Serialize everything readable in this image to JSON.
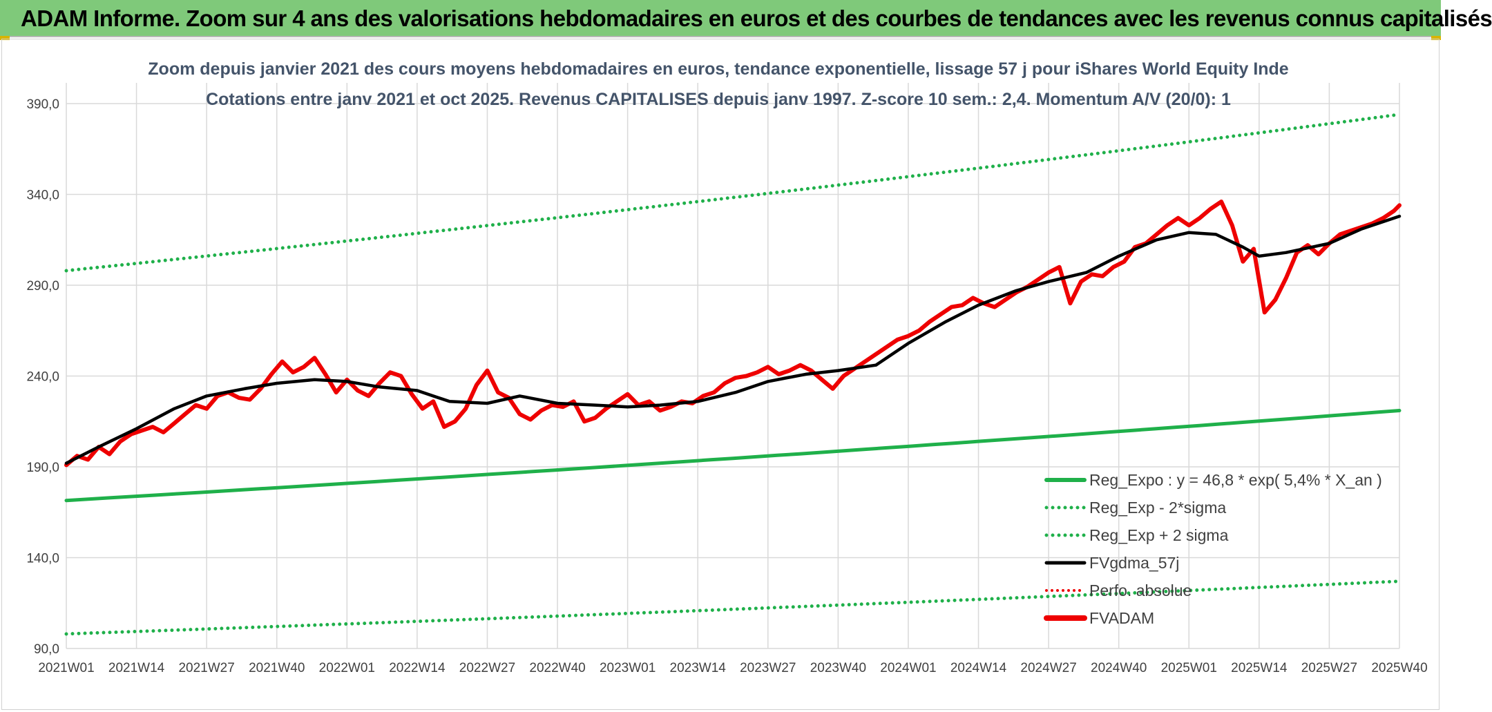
{
  "banner": {
    "title": "ADAM Informe. Zoom sur 4 ans des valorisations hebdomadaires en euros et des courbes de tendances avec les revenus connus capitalisés"
  },
  "colors": {
    "banner_bg": "#7fc97a",
    "reg_expo": "#1fb04a",
    "sigma_lines": "#1fb04a",
    "fvgdma": "#000000",
    "fvadam": "#ee0000",
    "perfo": "#ee0000",
    "title_text": "#44546a",
    "grid": "#d9d9d9"
  },
  "chart_data": {
    "type": "line",
    "title_line1": "Zoom depuis janvier 2021 des cours moyens hebdomadaires en euros, tendance exponentielle, lissage 57 j pour iShares World Equity Inde",
    "title_line2": "Cotations entre janv 2021 et oct 2025. Revenus CAPITALISES depuis janv 1997. Z-score 10 sem.: 2,4. Momentum A/V (20/0): 1",
    "ylim": [
      90,
      390
    ],
    "yticks": [
      90,
      140,
      190,
      240,
      290,
      340,
      390
    ],
    "ytick_labels": [
      "90,0",
      "140,0",
      "190,0",
      "240,0",
      "290,0",
      "340,0",
      "390,0"
    ],
    "x_range_weeks": [
      0,
      247
    ],
    "xtick_labels": [
      "2021W01",
      "2021W14",
      "2021W27",
      "2021W40",
      "2022W01",
      "2022W14",
      "2022W27",
      "2022W40",
      "2023W01",
      "2023W14",
      "2023W27",
      "2023W40",
      "2024W01",
      "2024W14",
      "2024W27",
      "2024W40",
      "2025W01",
      "2025W14",
      "2025W27",
      "2025W40"
    ],
    "xtick_weeks": [
      0,
      13,
      26,
      39,
      52,
      65,
      78,
      91,
      104,
      117,
      130,
      143,
      156,
      169,
      182,
      195,
      208,
      221,
      234,
      247
    ],
    "legend": [
      {
        "key": "reg_expo",
        "label": "Reg_Expo : y = 46,8 * exp( 5,4% *  X_an )",
        "style": "solid-green"
      },
      {
        "key": "reg_minus",
        "label": "Reg_Exp - 2*sigma",
        "style": "dotted-green"
      },
      {
        "key": "reg_plus",
        "label": "Reg_Exp + 2 sigma",
        "style": "dotted-green"
      },
      {
        "key": "fvgdma",
        "label": "FVgdma_57j",
        "style": "solid-black"
      },
      {
        "key": "perfo",
        "label": "Perfo. absolue",
        "style": "dotted-red"
      },
      {
        "key": "fvadam",
        "label": "FVADAM",
        "style": "solid-red-thick"
      }
    ],
    "series": [
      {
        "name": "Reg_Expo",
        "x": [
          0,
          247
        ],
        "y": [
          171.5,
          221.0
        ],
        "growth": "exponential"
      },
      {
        "name": "Reg_Exp - 2*sigma",
        "x": [
          0,
          247
        ],
        "y": [
          98.0,
          127.0
        ],
        "growth": "exponential"
      },
      {
        "name": "Reg_Exp + 2 sigma",
        "x": [
          0,
          247
        ],
        "y": [
          298.0,
          384.0
        ],
        "growth": "exponential"
      },
      {
        "name": "FVgdma_57j",
        "x": [
          0,
          6,
          13,
          20,
          26,
          33,
          39,
          46,
          52,
          58,
          65,
          71,
          78,
          84,
          91,
          98,
          104,
          110,
          117,
          124,
          130,
          137,
          143,
          150,
          156,
          163,
          169,
          176,
          182,
          189,
          195,
          202,
          208,
          213,
          218,
          221,
          226,
          234,
          240,
          247
        ],
        "y": [
          192,
          201,
          211,
          222,
          229,
          233,
          236,
          238,
          237,
          234,
          232,
          226,
          225,
          229,
          225,
          224,
          223,
          224,
          226,
          231,
          237,
          241,
          243,
          246,
          258,
          270,
          279,
          287,
          292,
          297,
          306,
          315,
          319,
          318,
          311,
          306,
          308,
          313,
          321,
          328
        ]
      },
      {
        "name": "FVADAM",
        "x": [
          0,
          2,
          4,
          6,
          8,
          10,
          12,
          14,
          16,
          18,
          20,
          22,
          24,
          26,
          28,
          30,
          32,
          34,
          36,
          38,
          40,
          42,
          44,
          46,
          48,
          50,
          52,
          54,
          56,
          58,
          60,
          62,
          64,
          66,
          68,
          70,
          72,
          74,
          76,
          78,
          80,
          82,
          84,
          86,
          88,
          90,
          92,
          94,
          96,
          98,
          100,
          102,
          104,
          106,
          108,
          110,
          112,
          114,
          116,
          118,
          120,
          122,
          124,
          126,
          128,
          130,
          132,
          134,
          136,
          138,
          140,
          142,
          144,
          146,
          148,
          150,
          152,
          154,
          156,
          158,
          160,
          162,
          164,
          166,
          168,
          170,
          172,
          174,
          176,
          178,
          180,
          182,
          184,
          186,
          188,
          190,
          192,
          194,
          196,
          198,
          200,
          202,
          204,
          206,
          208,
          210,
          212,
          214,
          216,
          218,
          220,
          222,
          224,
          226,
          228,
          230,
          232,
          234,
          236,
          238,
          240,
          242,
          244,
          246,
          247
        ],
        "y": [
          191,
          196,
          194,
          201,
          197,
          204,
          208,
          210,
          212,
          209,
          214,
          219,
          224,
          222,
          229,
          231,
          228,
          227,
          233,
          241,
          248,
          242,
          245,
          250,
          241,
          231,
          238,
          232,
          229,
          236,
          242,
          240,
          230,
          222,
          226,
          212,
          215,
          222,
          235,
          243,
          231,
          228,
          219,
          216,
          221,
          224,
          223,
          226,
          215,
          217,
          222,
          226,
          230,
          224,
          226,
          221,
          223,
          226,
          225,
          229,
          231,
          236,
          239,
          240,
          242,
          245,
          241,
          243,
          246,
          243,
          238,
          233,
          240,
          244,
          248,
          252,
          256,
          260,
          262,
          265,
          270,
          274,
          278,
          279,
          283,
          280,
          278,
          282,
          286,
          289,
          293,
          297,
          300,
          280,
          292,
          296,
          295,
          300,
          303,
          311,
          313,
          318,
          323,
          327,
          323,
          327,
          332,
          336,
          323,
          303,
          310,
          275,
          282,
          294,
          308,
          312,
          307,
          313,
          318,
          320,
          322,
          324,
          327,
          331,
          334
        ]
      }
    ]
  }
}
